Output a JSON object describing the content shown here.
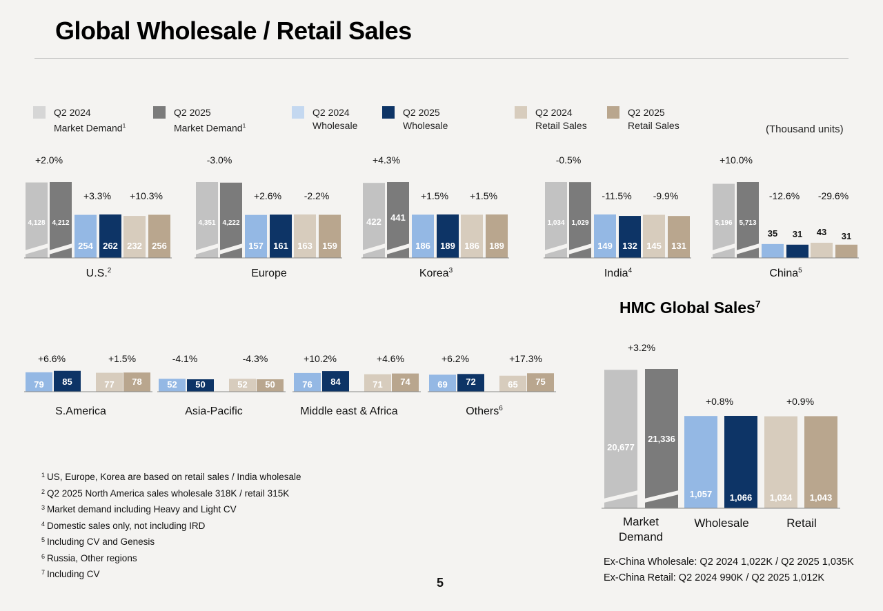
{
  "page": {
    "title": "Global Wholesale / Retail Sales",
    "units": "(Thousand units)",
    "page_number": "5",
    "hmc_title": "HMC Global Sales",
    "hmc_title_sup": "7"
  },
  "legend": [
    {
      "line1": "Q2 2024",
      "line2": "Market Demand",
      "sup": "1",
      "color": "#d6d6d6"
    },
    {
      "line1": "Q2 2025",
      "line2": "Market Demand",
      "sup": "1",
      "color": "#7b7b7b"
    },
    {
      "line1": "Q2 2024",
      "line2": "Wholesale",
      "sup": "",
      "color": "#c4d8f0"
    },
    {
      "line1": "Q2 2025",
      "line2": "Wholesale",
      "sup": "",
      "color": "#0d3466"
    },
    {
      "line1": "Q2 2024",
      "line2": "Retail Sales",
      "sup": "",
      "color": "#d7ccbd"
    },
    {
      "line1": "Q2 2025",
      "line2": "Retail Sales",
      "sup": "",
      "color": "#b9a68e"
    }
  ],
  "colors": {
    "md24": "#c2c2c2",
    "md25": "#7b7b7b",
    "ws24": "#94b8e4",
    "ws25": "#0d3466",
    "rt24": "#d7ccbd",
    "rt25": "#b9a68e"
  },
  "chart_data": [
    {
      "type": "bar",
      "name": "U.S.",
      "sup": "2",
      "series": [
        "Market Demand",
        "Wholesale",
        "Retail Sales"
      ],
      "values": {
        "md": [
          4128,
          4212
        ],
        "ws": [
          254,
          262
        ],
        "rt": [
          232,
          256
        ]
      },
      "labels": {
        "md": [
          "4,128",
          "4,212"
        ],
        "ws": [
          "254",
          "262"
        ],
        "rt": [
          "232",
          "256"
        ]
      },
      "growth": {
        "md": "+2.0%",
        "ws": "+3.3%",
        "rt": "+10.3%"
      }
    },
    {
      "type": "bar",
      "name": "Europe",
      "sup": "",
      "values": {
        "md": [
          4351,
          4222
        ],
        "ws": [
          157,
          161
        ],
        "rt": [
          163,
          159
        ]
      },
      "labels": {
        "md": [
          "4,351",
          "4,222"
        ],
        "ws": [
          "157",
          "161"
        ],
        "rt": [
          "163",
          "159"
        ]
      },
      "growth": {
        "md": "-3.0%",
        "ws": "+2.6%",
        "rt": "-2.2%"
      }
    },
    {
      "type": "bar",
      "name": "Korea",
      "sup": "3",
      "values": {
        "md": [
          422,
          441
        ],
        "ws": [
          186,
          189
        ],
        "rt": [
          186,
          189
        ]
      },
      "labels": {
        "md": [
          "422",
          "441"
        ],
        "ws": [
          "186",
          "189"
        ],
        "rt": [
          "186",
          "189"
        ]
      },
      "growth": {
        "md": "+4.3%",
        "ws": "+1.5%",
        "rt": "+1.5%"
      }
    },
    {
      "type": "bar",
      "name": "India",
      "sup": "4",
      "values": {
        "md": [
          1034,
          1029
        ],
        "ws": [
          149,
          132
        ],
        "rt": [
          145,
          131
        ]
      },
      "labels": {
        "md": [
          "1,034",
          "1,029"
        ],
        "ws": [
          "149",
          "132"
        ],
        "rt": [
          "145",
          "131"
        ]
      },
      "growth": {
        "md": "-0.5%",
        "ws": "-11.5%",
        "rt": "-9.9%"
      }
    },
    {
      "type": "bar",
      "name": "China",
      "sup": "5",
      "values": {
        "md": [
          5196,
          5713
        ],
        "ws": [
          35,
          31
        ],
        "rt": [
          43,
          31
        ]
      },
      "labels": {
        "md": [
          "5,196",
          "5,713"
        ],
        "ws": [
          "35",
          "31"
        ],
        "rt": [
          "43",
          "31"
        ]
      },
      "growth": {
        "md": "+10.0%",
        "ws": "-12.6%",
        "rt": "-29.6%"
      }
    },
    {
      "type": "bar",
      "name": "S.America",
      "sup": "",
      "values": {
        "ws": [
          79,
          85
        ],
        "rt": [
          77,
          78
        ]
      },
      "labels": {
        "ws": [
          "79",
          "85"
        ],
        "rt": [
          "77",
          "78"
        ]
      },
      "growth": {
        "ws": "+6.6%",
        "rt": "+1.5%"
      }
    },
    {
      "type": "bar",
      "name": "Asia-Pacific",
      "sup": "",
      "values": {
        "ws": [
          52,
          50
        ],
        "rt": [
          52,
          50
        ]
      },
      "labels": {
        "ws": [
          "52",
          "50"
        ],
        "rt": [
          "52",
          "50"
        ]
      },
      "growth": {
        "ws": "-4.1%",
        "rt": "-4.3%"
      }
    },
    {
      "type": "bar",
      "name": "Middle east & Africa",
      "sup": "",
      "values": {
        "ws": [
          76,
          84
        ],
        "rt": [
          71,
          74
        ]
      },
      "labels": {
        "ws": [
          "76",
          "84"
        ],
        "rt": [
          "71",
          "74"
        ]
      },
      "growth": {
        "ws": "+10.2%",
        "rt": "+4.6%"
      }
    },
    {
      "type": "bar",
      "name": "Others",
      "sup": "6",
      "values": {
        "ws": [
          69,
          72
        ],
        "rt": [
          65,
          75
        ]
      },
      "labels": {
        "ws": [
          "69",
          "72"
        ],
        "rt": [
          "65",
          "75"
        ]
      },
      "growth": {
        "ws": "+6.2%",
        "rt": "+17.3%"
      }
    },
    {
      "type": "bar",
      "name": "HMC Global Sales",
      "sup": "7",
      "categories": [
        "Market Demand",
        "Wholesale",
        "Retail"
      ],
      "values": {
        "md": [
          20677,
          21336
        ],
        "ws": [
          1057,
          1066
        ],
        "rt": [
          1034,
          1043
        ]
      },
      "labels": {
        "md": [
          "20,677",
          "21,336"
        ],
        "ws": [
          "1,057",
          "1,066"
        ],
        "rt": [
          "1,034",
          "1,043"
        ]
      },
      "growth": {
        "md": "+3.2%",
        "ws": "+0.8%",
        "rt": "+0.9%"
      },
      "category_labels": {
        "md1": "Market",
        "md2": "Demand",
        "ws": "Wholesale",
        "rt": "Retail"
      }
    }
  ],
  "footnotes": [
    {
      "num": "1",
      "text": "US, Europe, Korea are based on retail sales / India wholesale"
    },
    {
      "num": "2",
      "text": "Q2 2025 North America sales wholesale 318K / retail 315K"
    },
    {
      "num": "3",
      "text": "Market demand including Heavy and Light CV"
    },
    {
      "num": "4",
      "text": "Domestic sales only, not including IRD"
    },
    {
      "num": "5",
      "text": "Including CV and Genesis"
    },
    {
      "num": "6",
      "text": "Russia, Other regions"
    },
    {
      "num": "7",
      "text": "Including CV"
    }
  ],
  "exchina": {
    "line1": "Ex-China Wholesale: Q2 2024 1,022K / Q2 2025 1,035K",
    "line2": "Ex-China Retail: Q2 2024 990K / Q2 2025 1,012K"
  }
}
